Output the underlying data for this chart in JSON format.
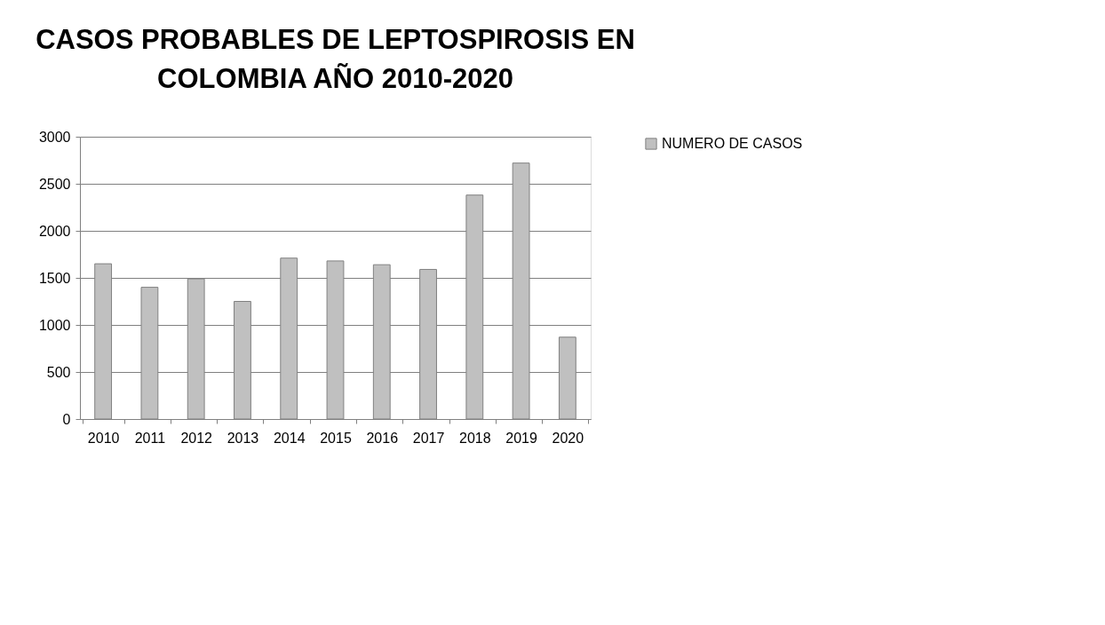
{
  "chart_data": {
    "type": "bar",
    "title": "CASOS PROBABLES DE LEPTOSPIROSIS EN COLOMBIA AÑO 2010-2020",
    "categories": [
      "2010",
      "2011",
      "2012",
      "2013",
      "2014",
      "2015",
      "2016",
      "2017",
      "2018",
      "2019",
      "2020"
    ],
    "series": [
      {
        "name": "NUMERO DE CASOS",
        "color": "#c0c0c0",
        "values": [
          1650,
          1400,
          1490,
          1250,
          1710,
          1680,
          1640,
          1590,
          2380,
          2720,
          870
        ]
      }
    ],
    "ylim": [
      0,
      3000
    ],
    "yticks": [
      0,
      500,
      1000,
      1500,
      2000,
      2500,
      3000
    ],
    "grid": "y",
    "legend": "right"
  }
}
